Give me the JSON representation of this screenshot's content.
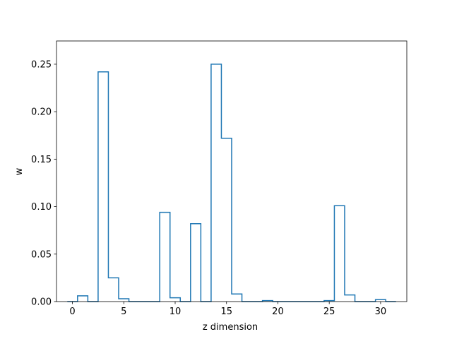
{
  "chart_data": {
    "type": "line",
    "style": "step-histogram",
    "title": "",
    "xlabel": "z dimension",
    "ylabel": "w",
    "xlim": [
      -1.55,
      32.55
    ],
    "ylim": [
      0,
      0.2745
    ],
    "x_ticks": [
      0,
      5,
      10,
      15,
      20,
      25,
      30
    ],
    "y_ticks": [
      0.0,
      0.05,
      0.1,
      0.15,
      0.2,
      0.25
    ],
    "y_tick_labels": [
      "0.00",
      "0.05",
      "0.10",
      "0.15",
      "0.20",
      "0.25"
    ],
    "grid": false,
    "color": "#1f77b4",
    "bins": [
      0,
      1,
      2,
      3,
      4,
      5,
      6,
      7,
      8,
      9,
      10,
      11,
      12,
      13,
      14,
      15,
      16,
      17,
      18,
      19,
      20,
      21,
      22,
      23,
      24,
      25,
      26,
      27,
      28,
      29,
      30,
      31
    ],
    "values": [
      0.0,
      0.006,
      0.0,
      0.242,
      0.025,
      0.003,
      0.0,
      0.0,
      0.0,
      0.094,
      0.004,
      0.0,
      0.082,
      0.0,
      0.25,
      0.172,
      0.008,
      0.0,
      0.0,
      0.001,
      0.0,
      0.0,
      0.0,
      0.0,
      0.0,
      0.001,
      0.101,
      0.007,
      0.0,
      0.0,
      0.002,
      0.0
    ]
  }
}
